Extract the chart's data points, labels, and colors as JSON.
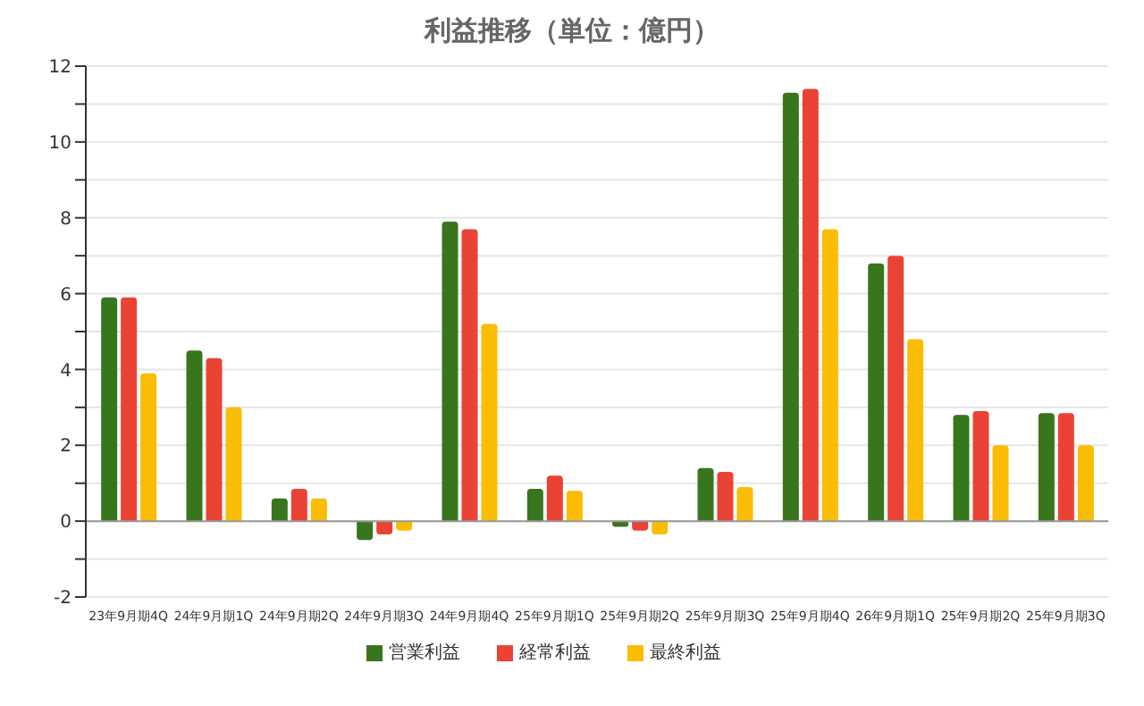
{
  "chart_data": {
    "type": "bar",
    "title": "利益推移（単位：億円）",
    "categories": [
      "23年9月期4Q",
      "24年9月期1Q",
      "24年9月期2Q",
      "24年9月期3Q",
      "24年9月期4Q",
      "25年9月期1Q",
      "25年9月期2Q",
      "25年9月期3Q",
      "25年9月期4Q",
      "26年9月期1Q",
      "25年9月期2Q",
      "25年9月期3Q"
    ],
    "series": [
      {
        "name": "営業利益",
        "color": "#38761d",
        "values": [
          5.9,
          4.5,
          0.6,
          -0.5,
          7.9,
          0.85,
          -0.15,
          1.4,
          11.3,
          6.8,
          2.8,
          2.85
        ]
      },
      {
        "name": "経常利益",
        "color": "#ea4335",
        "values": [
          5.9,
          4.3,
          0.85,
          -0.35,
          7.7,
          1.2,
          -0.25,
          1.3,
          11.4,
          7.0,
          2.9,
          2.85
        ]
      },
      {
        "name": "最終利益",
        "color": "#fbbc04",
        "values": [
          3.9,
          3.0,
          0.6,
          -0.25,
          5.2,
          0.8,
          -0.35,
          0.9,
          7.7,
          4.8,
          2.0,
          2.0
        ]
      }
    ],
    "ylim": [
      -2,
      12
    ],
    "yticks": [
      -2,
      {
        "value": -1,
        "label": null
      },
      0,
      {
        "value": 1,
        "label": null
      },
      2,
      {
        "value": 3,
        "label": null
      },
      4,
      {
        "value": 5,
        "label": null
      },
      6,
      {
        "value": 7,
        "label": null
      },
      8,
      {
        "value": 9,
        "label": null
      },
      10,
      {
        "value": 11,
        "label": null
      },
      12
    ],
    "grid": "y",
    "legend": "bottom"
  }
}
